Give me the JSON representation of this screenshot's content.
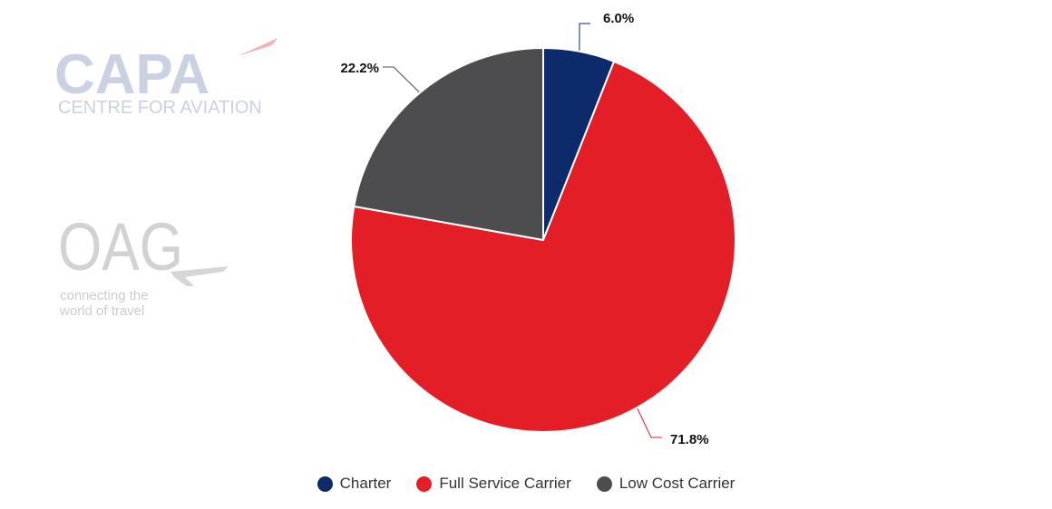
{
  "watermarks": {
    "capa_logo_text": "CAPA",
    "capa_tagline": "CENTRE FOR AVIATION",
    "oag_logo_text": "OAG",
    "oag_tagline_line1": "connecting the",
    "oag_tagline_line2": "world of travel"
  },
  "chart_data": {
    "type": "pie",
    "title": "",
    "categories": [
      "Charter",
      "Full Service Carrier",
      "Low Cost Carrier"
    ],
    "values": [
      6.0,
      71.8,
      22.2
    ],
    "labels": [
      "6.0%",
      "71.8%",
      "22.2%"
    ],
    "colors": [
      "#0d2a6b",
      "#e31e26",
      "#4d4d4f"
    ],
    "start_angle_deg": 0,
    "direction": "clockwise",
    "legend_position": "bottom"
  }
}
